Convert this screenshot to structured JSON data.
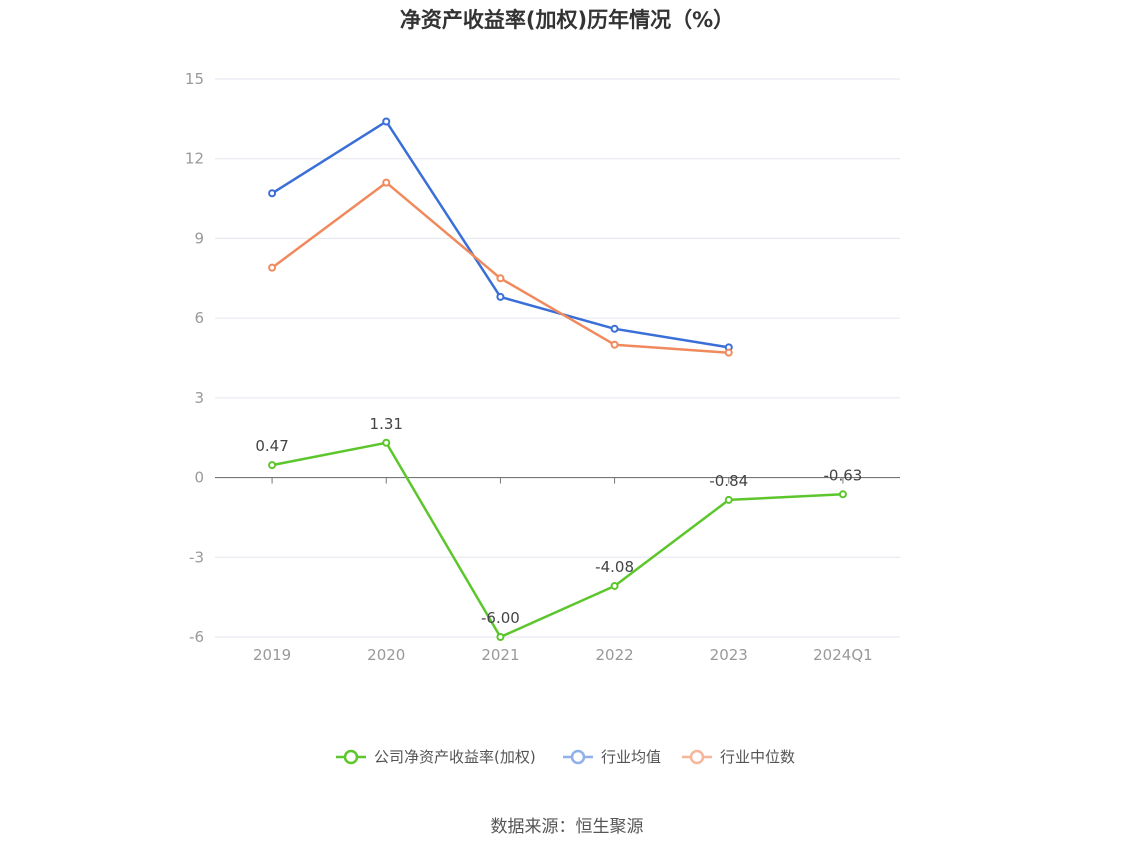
{
  "chart_data": {
    "type": "line",
    "title": "净资产收益率(加权)历年情况（%）",
    "categories": [
      "2019",
      "2020",
      "2021",
      "2022",
      "2023",
      "2024Q1"
    ],
    "ylim": [
      -6,
      15
    ],
    "yticks": [
      15,
      12,
      9,
      6,
      3,
      0,
      -3,
      -6
    ],
    "grid": true,
    "legend_position": "bottom",
    "series": [
      {
        "name": "公司净资产收益率(加权)",
        "color": "#5cc62c",
        "values": [
          0.47,
          1.31,
          -6.0,
          -4.08,
          -0.84,
          -0.63
        ],
        "data_labels": [
          "0.47",
          "1.31",
          "-6.00",
          "-4.08",
          "-0.84",
          "-0.63"
        ]
      },
      {
        "name": "行业均值",
        "color": "#3a6fd8",
        "values": [
          10.7,
          13.4,
          6.8,
          5.6,
          4.9,
          null
        ]
      },
      {
        "name": "行业中位数",
        "color": "#f08a5d",
        "values": [
          7.9,
          11.1,
          7.5,
          5.0,
          4.7,
          null
        ]
      }
    ]
  },
  "legend": {
    "colors": [
      "#5cc62c",
      "#8fb0ea",
      "#f7b59a"
    ]
  },
  "source": "数据来源：恒生聚源"
}
